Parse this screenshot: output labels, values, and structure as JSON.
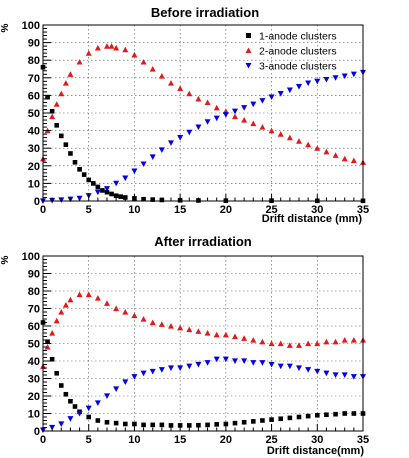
{
  "chart_data": [
    {
      "type": "scatter",
      "title": "Before irradiation",
      "xlabel": "Drift distance (mm)",
      "ylabel": "%",
      "xlim": [
        0,
        35
      ],
      "ylim": [
        0,
        100
      ],
      "x_ticks": [
        0,
        5,
        10,
        15,
        20,
        25,
        30,
        35
      ],
      "y_ticks": [
        0,
        10,
        20,
        30,
        40,
        50,
        60,
        70,
        80,
        90,
        100
      ],
      "grid": true,
      "legend_position": "top-right",
      "series": [
        {
          "name": "1-anode clusters",
          "marker": "square",
          "color": "#000000",
          "points": [
            [
              0,
              76
            ],
            [
              0.5,
              59
            ],
            [
              1,
              51
            ],
            [
              1.5,
              43
            ],
            [
              2,
              37
            ],
            [
              2.5,
              32
            ],
            [
              3,
              27
            ],
            [
              3.5,
              22
            ],
            [
              4,
              18
            ],
            [
              4.5,
              15
            ],
            [
              5,
              12
            ],
            [
              5.5,
              10
            ],
            [
              6,
              8
            ],
            [
              6.5,
              6
            ],
            [
              7,
              5
            ],
            [
              7.5,
              4
            ],
            [
              8,
              3
            ],
            [
              8.5,
              2.5
            ],
            [
              9,
              2
            ],
            [
              10,
              1.5
            ],
            [
              11,
              1
            ],
            [
              12,
              0.8
            ],
            [
              13,
              0.6
            ],
            [
              15,
              0.4
            ],
            [
              17,
              0.3
            ],
            [
              20,
              0.2
            ],
            [
              25,
              0.2
            ],
            [
              30,
              0.1
            ],
            [
              35,
              0.1
            ]
          ]
        },
        {
          "name": "2-anode clusters",
          "marker": "triangle-up",
          "color": "#e31a1c",
          "points": [
            [
              0,
              24
            ],
            [
              0.5,
              40
            ],
            [
              1,
              48
            ],
            [
              1.5,
              55
            ],
            [
              2,
              61
            ],
            [
              2.5,
              67
            ],
            [
              3,
              72
            ],
            [
              4,
              79
            ],
            [
              5,
              84
            ],
            [
              6,
              87
            ],
            [
              7,
              88
            ],
            [
              7.5,
              88
            ],
            [
              8,
              87
            ],
            [
              9,
              86
            ],
            [
              10,
              83
            ],
            [
              11,
              79
            ],
            [
              12,
              75
            ],
            [
              13,
              71
            ],
            [
              14,
              67
            ],
            [
              15,
              64
            ],
            [
              16,
              61
            ],
            [
              17,
              58
            ],
            [
              18,
              56
            ],
            [
              19,
              53
            ],
            [
              20,
              51
            ],
            [
              21,
              48
            ],
            [
              22,
              46
            ],
            [
              23,
              44
            ],
            [
              24,
              42
            ],
            [
              25,
              40
            ],
            [
              26,
              38
            ],
            [
              27,
              36
            ],
            [
              28,
              34
            ],
            [
              29,
              32
            ],
            [
              30,
              30
            ],
            [
              31,
              28
            ],
            [
              32,
              26
            ],
            [
              33,
              24
            ],
            [
              34,
              23
            ],
            [
              35,
              22
            ]
          ]
        },
        {
          "name": "3-anode clusters",
          "marker": "triangle-down",
          "color": "#0000ee",
          "points": [
            [
              0,
              0
            ],
            [
              1,
              0.3
            ],
            [
              2,
              0.6
            ],
            [
              3,
              1
            ],
            [
              4,
              1.5
            ],
            [
              5,
              3
            ],
            [
              6,
              5
            ],
            [
              7,
              7
            ],
            [
              8,
              10
            ],
            [
              9,
              13
            ],
            [
              10,
              17
            ],
            [
              11,
              21
            ],
            [
              12,
              25
            ],
            [
              13,
              29
            ],
            [
              14,
              33
            ],
            [
              15,
              36
            ],
            [
              16,
              39
            ],
            [
              17,
              42
            ],
            [
              18,
              45
            ],
            [
              19,
              47
            ],
            [
              20,
              49
            ],
            [
              21,
              51
            ],
            [
              22,
              53
            ],
            [
              23,
              55
            ],
            [
              24,
              57
            ],
            [
              25,
              59
            ],
            [
              26,
              61
            ],
            [
              27,
              63
            ],
            [
              28,
              65
            ],
            [
              29,
              67
            ],
            [
              30,
              68
            ],
            [
              31,
              69
            ],
            [
              32,
              70
            ],
            [
              33,
              71
            ],
            [
              34,
              72
            ],
            [
              35,
              73
            ]
          ]
        }
      ]
    },
    {
      "type": "scatter",
      "title": "After irradiation",
      "xlabel": "Drift distance(mm)",
      "ylabel": "%",
      "xlim": [
        0,
        35
      ],
      "ylim": [
        0,
        100
      ],
      "x_ticks": [
        0,
        5,
        10,
        15,
        20,
        25,
        30,
        35
      ],
      "y_ticks": [
        0,
        10,
        20,
        30,
        40,
        50,
        60,
        70,
        80,
        90,
        100
      ],
      "grid": true,
      "series": [
        {
          "marker": "square",
          "color": "#000000",
          "points": [
            [
              0,
              62
            ],
            [
              0.5,
              51
            ],
            [
              1,
              41
            ],
            [
              1.5,
              33
            ],
            [
              2,
              26
            ],
            [
              2.5,
              21
            ],
            [
              3,
              17
            ],
            [
              3.5,
              14
            ],
            [
              4,
              11
            ],
            [
              5,
              8
            ],
            [
              6,
              6
            ],
            [
              7,
              5
            ],
            [
              8,
              4.5
            ],
            [
              9,
              4
            ],
            [
              10,
              4
            ],
            [
              11,
              3.5
            ],
            [
              12,
              3.5
            ],
            [
              13,
              3.5
            ],
            [
              14,
              3.2
            ],
            [
              15,
              3.2
            ],
            [
              16,
              3.2
            ],
            [
              17,
              3.3
            ],
            [
              18,
              3.5
            ],
            [
              19,
              3.8
            ],
            [
              20,
              4
            ],
            [
              21,
              4.5
            ],
            [
              22,
              5
            ],
            [
              23,
              5.5
            ],
            [
              24,
              6
            ],
            [
              25,
              6.5
            ],
            [
              26,
              7
            ],
            [
              27,
              7.5
            ],
            [
              28,
              8
            ],
            [
              29,
              8.5
            ],
            [
              30,
              9
            ],
            [
              31,
              9.3
            ],
            [
              32,
              9.6
            ],
            [
              33,
              10
            ],
            [
              34,
              10
            ],
            [
              35,
              10
            ]
          ]
        },
        {
          "marker": "triangle-up",
          "color": "#e31a1c",
          "points": [
            [
              0,
              37
            ],
            [
              0.5,
              48
            ],
            [
              1,
              56
            ],
            [
              1.5,
              63
            ],
            [
              2,
              68
            ],
            [
              2.5,
              72
            ],
            [
              3,
              75
            ],
            [
              4,
              78
            ],
            [
              5,
              78
            ],
            [
              6,
              76
            ],
            [
              7,
              73
            ],
            [
              8,
              70
            ],
            [
              9,
              68
            ],
            [
              10,
              66
            ],
            [
              11,
              64
            ],
            [
              12,
              62
            ],
            [
              13,
              61
            ],
            [
              14,
              60
            ],
            [
              15,
              59
            ],
            [
              16,
              58
            ],
            [
              17,
              57
            ],
            [
              18,
              56
            ],
            [
              19,
              55
            ],
            [
              20,
              55
            ],
            [
              21,
              54
            ],
            [
              22,
              53
            ],
            [
              23,
              52
            ],
            [
              24,
              51
            ],
            [
              25,
              50
            ],
            [
              26,
              50
            ],
            [
              27,
              49
            ],
            [
              28,
              49
            ],
            [
              29,
              50
            ],
            [
              30,
              50
            ],
            [
              31,
              51
            ],
            [
              32,
              51
            ],
            [
              33,
              52
            ],
            [
              34,
              52
            ],
            [
              35,
              52
            ]
          ]
        },
        {
          "marker": "triangle-down",
          "color": "#0000ee",
          "points": [
            [
              0,
              0.5
            ],
            [
              1,
              2
            ],
            [
              2,
              4
            ],
            [
              3,
              7
            ],
            [
              4,
              10
            ],
            [
              5,
              13
            ],
            [
              6,
              16
            ],
            [
              7,
              20
            ],
            [
              8,
              24
            ],
            [
              9,
              28
            ],
            [
              10,
              31
            ],
            [
              11,
              33
            ],
            [
              12,
              34
            ],
            [
              13,
              35
            ],
            [
              14,
              36
            ],
            [
              15,
              36
            ],
            [
              16,
              37
            ],
            [
              17,
              38
            ],
            [
              18,
              39
            ],
            [
              19,
              41
            ],
            [
              20,
              41
            ],
            [
              21,
              40
            ],
            [
              22,
              40
            ],
            [
              23,
              39
            ],
            [
              24,
              39
            ],
            [
              25,
              38
            ],
            [
              26,
              37
            ],
            [
              27,
              37
            ],
            [
              28,
              36
            ],
            [
              29,
              35
            ],
            [
              30,
              34
            ],
            [
              31,
              33
            ],
            [
              32,
              32
            ],
            [
              33,
              32
            ],
            [
              34,
              31
            ],
            [
              35,
              31
            ]
          ]
        }
      ]
    }
  ]
}
